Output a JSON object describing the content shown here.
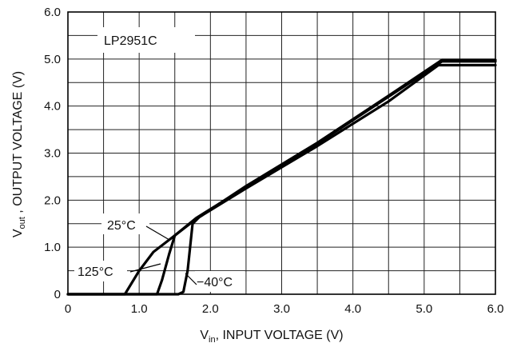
{
  "chart_data": {
    "type": "line",
    "xlabel_main": "V",
    "xlabel_sub": "in",
    "xlabel_rest": ", INPUT VOLTAGE (V)",
    "ylabel_main": "V",
    "ylabel_sub": "out",
    "ylabel_rest": " , OUTPUT VOLTAGE (V)",
    "xlim": [
      0,
      6
    ],
    "ylim": [
      0,
      6
    ],
    "x_ticks": [
      "0",
      "1.0",
      "2.0",
      "3.0",
      "4.0",
      "5.0",
      "6.0"
    ],
    "y_ticks": [
      "0",
      "1.0",
      "2.0",
      "3.0",
      "4.0",
      "5.0",
      "6.0"
    ],
    "grid": true,
    "annotations": {
      "part": "LP2951C",
      "t25": "25°C",
      "t125": "125°C",
      "tm40": "−40°C"
    },
    "series": [
      {
        "name": "125°C",
        "points": [
          [
            0,
            0
          ],
          [
            0.8,
            0
          ],
          [
            1.0,
            0.5
          ],
          [
            1.2,
            0.9
          ],
          [
            1.5,
            1.25
          ],
          [
            1.8,
            1.6
          ],
          [
            2.5,
            2.25
          ],
          [
            3.5,
            3.15
          ],
          [
            4.5,
            4.1
          ],
          [
            5.2,
            4.87
          ],
          [
            6.0,
            4.87
          ]
        ]
      },
      {
        "name": "25°C",
        "points": [
          [
            0,
            0
          ],
          [
            1.25,
            0
          ],
          [
            1.32,
            0.3
          ],
          [
            1.42,
            0.85
          ],
          [
            1.5,
            1.25
          ],
          [
            1.8,
            1.62
          ],
          [
            2.5,
            2.28
          ],
          [
            3.5,
            3.2
          ],
          [
            4.5,
            4.2
          ],
          [
            5.25,
            4.95
          ],
          [
            6.0,
            4.95
          ]
        ]
      },
      {
        "name": "−40°C",
        "points": [
          [
            0,
            0
          ],
          [
            1.55,
            0
          ],
          [
            1.62,
            0.05
          ],
          [
            1.68,
            0.5
          ],
          [
            1.75,
            1.5
          ],
          [
            1.85,
            1.65
          ],
          [
            2.5,
            2.3
          ],
          [
            3.5,
            3.22
          ],
          [
            4.5,
            4.22
          ],
          [
            5.25,
            4.98
          ],
          [
            6.0,
            4.98
          ]
        ]
      }
    ]
  }
}
